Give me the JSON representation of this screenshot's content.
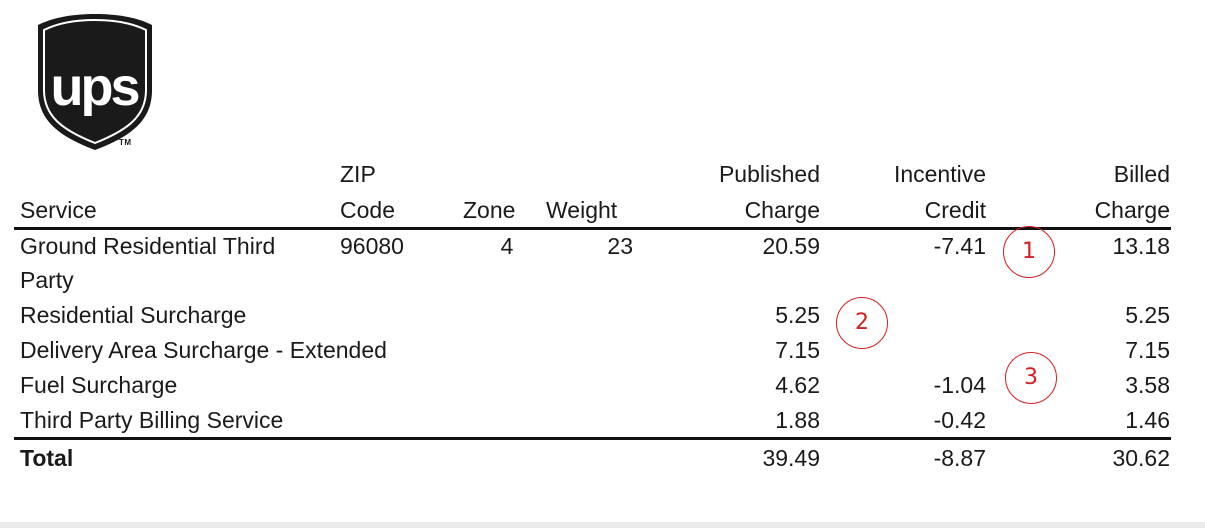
{
  "logo": {
    "text": "ups",
    "trademark": "TM",
    "shield_color": "#1a1a1a",
    "text_color": "#ffffff"
  },
  "table": {
    "headers": {
      "service": {
        "line1": "",
        "line2": "Service"
      },
      "zip": {
        "line1": "ZIP",
        "line2": "Code"
      },
      "zone": {
        "line1": "",
        "line2": "Zone"
      },
      "weight": {
        "line1": "",
        "line2": "Weight"
      },
      "published": {
        "line1": "Published",
        "line2": "Charge"
      },
      "incentive": {
        "line1": "Incentive",
        "line2": "Credit"
      },
      "billed": {
        "line1": "Billed",
        "line2": "Charge"
      }
    },
    "rows": [
      {
        "service_line1": "Ground Residential Third",
        "service_line2": "Party",
        "zip": "96080",
        "zone": "4",
        "weight": "23",
        "published": "20.59",
        "incentive": "-7.41",
        "billed": "13.18"
      },
      {
        "service_line1": "Residential Surcharge",
        "published": "5.25",
        "incentive": "",
        "billed": "5.25"
      },
      {
        "service_line1": "Delivery Area Surcharge - Extended",
        "published": "7.15",
        "incentive": "",
        "billed": "7.15"
      },
      {
        "service_line1": "Fuel Surcharge",
        "published": "4.62",
        "incentive": "-1.04",
        "billed": "3.58"
      },
      {
        "service_line1": "Third Party Billing Service",
        "published": "1.88",
        "incentive": "-0.42",
        "billed": "1.46"
      }
    ],
    "total": {
      "label": "Total",
      "published": "39.49",
      "incentive": "-8.87",
      "billed": "30.62"
    }
  },
  "annotations": [
    {
      "label": "1",
      "color": "#d32020"
    },
    {
      "label": "2",
      "color": "#d32020"
    },
    {
      "label": "3",
      "color": "#d32020"
    }
  ]
}
